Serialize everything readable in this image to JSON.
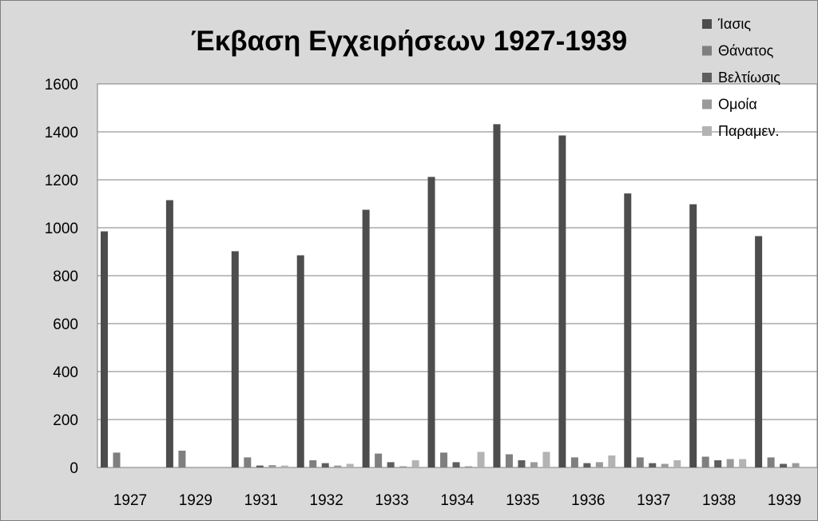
{
  "chart_data": {
    "type": "bar",
    "title": "Έκβαση Εγχειρήσεων 1927-1939",
    "xlabel": "",
    "ylabel": "",
    "categories": [
      "1927",
      "1929",
      "1931",
      "1932",
      "1933",
      "1934",
      "1935",
      "1936",
      "1937",
      "1938",
      "1939"
    ],
    "ylim": [
      0,
      1600
    ],
    "yticks": [
      0,
      200,
      400,
      600,
      800,
      1000,
      1200,
      1400,
      1600
    ],
    "grid": true,
    "legend_position": "top-right",
    "series": [
      {
        "name": "Ίασις",
        "color": "#4d4d4d",
        "values": [
          985,
          1115,
          902,
          885,
          1075,
          1212,
          1432,
          1385,
          1143,
          1098,
          965
        ]
      },
      {
        "name": "Θάνατος",
        "color": "#7f7f7f",
        "values": [
          62,
          70,
          42,
          30,
          58,
          62,
          55,
          42,
          42,
          45,
          42
        ]
      },
      {
        "name": "Βελτίωσις",
        "color": "#5e5e5e",
        "values": [
          0,
          0,
          8,
          18,
          22,
          22,
          30,
          18,
          18,
          30,
          15
        ]
      },
      {
        "name": "Ομοία",
        "color": "#9a9a9a",
        "values": [
          0,
          0,
          10,
          8,
          5,
          5,
          22,
          22,
          15,
          35,
          18
        ]
      },
      {
        "name": "Παραμεν.",
        "color": "#b3b3b3",
        "values": [
          0,
          0,
          8,
          15,
          30,
          65,
          65,
          50,
          30,
          35,
          0
        ]
      }
    ]
  }
}
